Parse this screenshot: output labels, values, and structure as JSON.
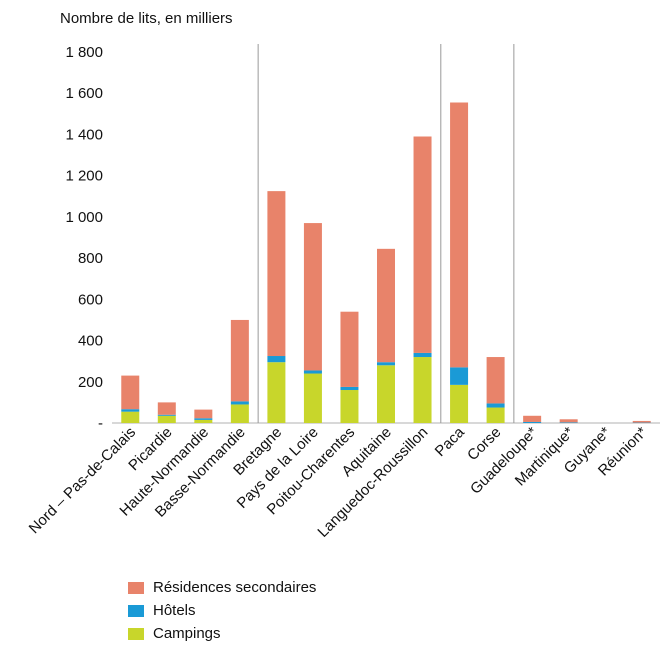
{
  "chart_data": {
    "type": "bar",
    "stacked": true,
    "ylabel": "Nombre de lits, en milliers",
    "ylim": [
      0,
      1800
    ],
    "y_ticks": [
      {
        "value": 0,
        "label": "-"
      },
      {
        "value": 200,
        "label": "200"
      },
      {
        "value": 400,
        "label": "400"
      },
      {
        "value": 600,
        "label": "600"
      },
      {
        "value": 800,
        "label": "800"
      },
      {
        "value": 1000,
        "label": "1 000"
      },
      {
        "value": 1200,
        "label": "1 200"
      },
      {
        "value": 1400,
        "label": "1 400"
      },
      {
        "value": 1600,
        "label": "1 600"
      },
      {
        "value": 1800,
        "label": "1 800"
      }
    ],
    "categories": [
      "Nord – Pas-de-Calais",
      "Picardie",
      "Haute-Normandie",
      "Basse-Normandie",
      "Bretagne",
      "Pays de la Loire",
      "Poitou-Charentes",
      "Aquitaine",
      "Languedoc-Roussillon",
      "Paca",
      "Corse",
      "Guadeloupe*",
      "Martinique*",
      "Guyane*",
      "Réunion*"
    ],
    "series": [
      {
        "name": "Campings",
        "color": "#c8d62b",
        "values": [
          55,
          35,
          15,
          90,
          295,
          240,
          160,
          280,
          320,
          185,
          75,
          0,
          0,
          0,
          0
        ]
      },
      {
        "name": "Hôtels",
        "color": "#1a9ad6",
        "values": [
          12,
          5,
          8,
          15,
          30,
          15,
          15,
          15,
          20,
          85,
          20,
          5,
          3,
          0,
          2
        ]
      },
      {
        "name": "Résidences secondaires",
        "color": "#e8836a",
        "values": [
          163,
          60,
          42,
          395,
          800,
          715,
          365,
          550,
          1050,
          1285,
          225,
          30,
          15,
          0,
          8
        ]
      }
    ],
    "separators_after_index": [
      3,
      8,
      10
    ],
    "grid": false,
    "legend_position": "bottom-left"
  }
}
